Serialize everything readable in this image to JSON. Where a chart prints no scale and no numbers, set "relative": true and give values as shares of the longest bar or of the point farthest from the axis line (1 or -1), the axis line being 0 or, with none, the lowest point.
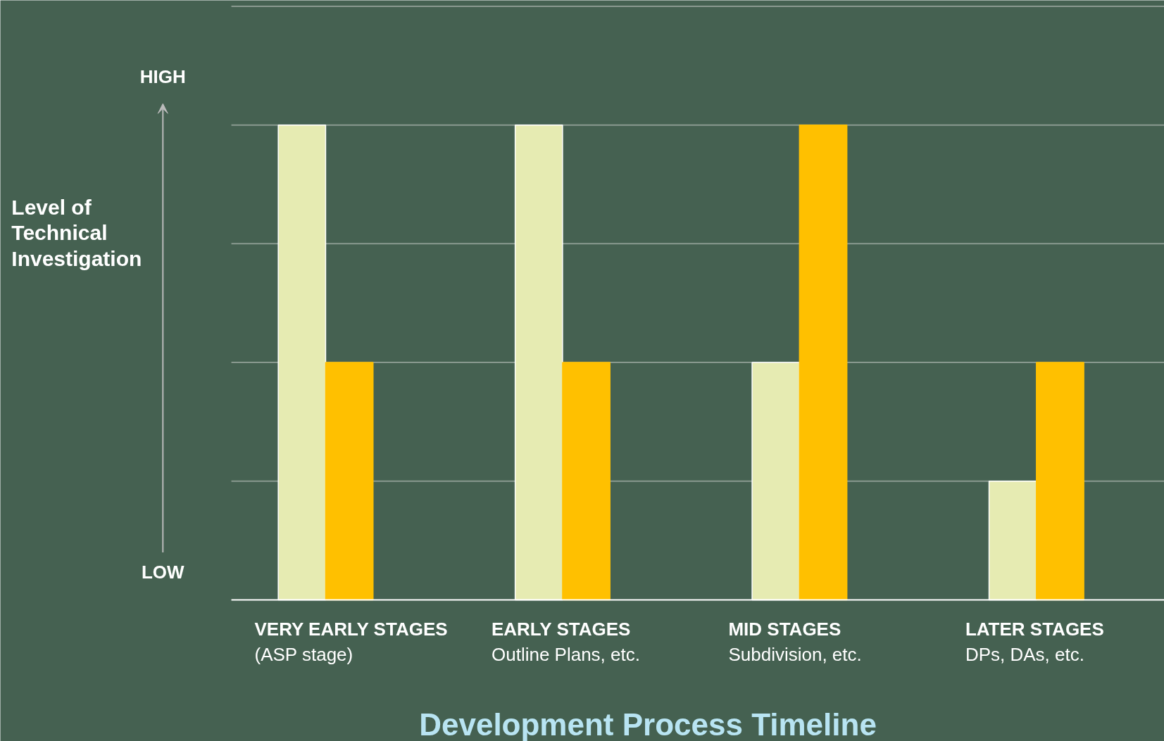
{
  "chart_data": {
    "type": "bar",
    "relative": true,
    "xlabel": "Development Process Timeline",
    "ylabel": "Level of\nTechnical\nInvestigation",
    "categories": [
      "VERY EARLY STAGES\n(ASP stage)",
      "EARLY STAGES\nOutline Plans, etc.",
      "MID STAGES\nSubdivision, etc.",
      "LATER STAGES\nDPs, DAs, etc."
    ],
    "series": [
      {
        "color": "#e6ebb2",
        "values": [
          1,
          1,
          0.5,
          0.25
        ]
      },
      {
        "color": "#ffc000",
        "values": [
          0.5,
          0.5,
          1,
          0.5
        ]
      }
    ],
    "annotations": [
      "HIGH",
      "LOW"
    ],
    "grid": "y"
  }
}
